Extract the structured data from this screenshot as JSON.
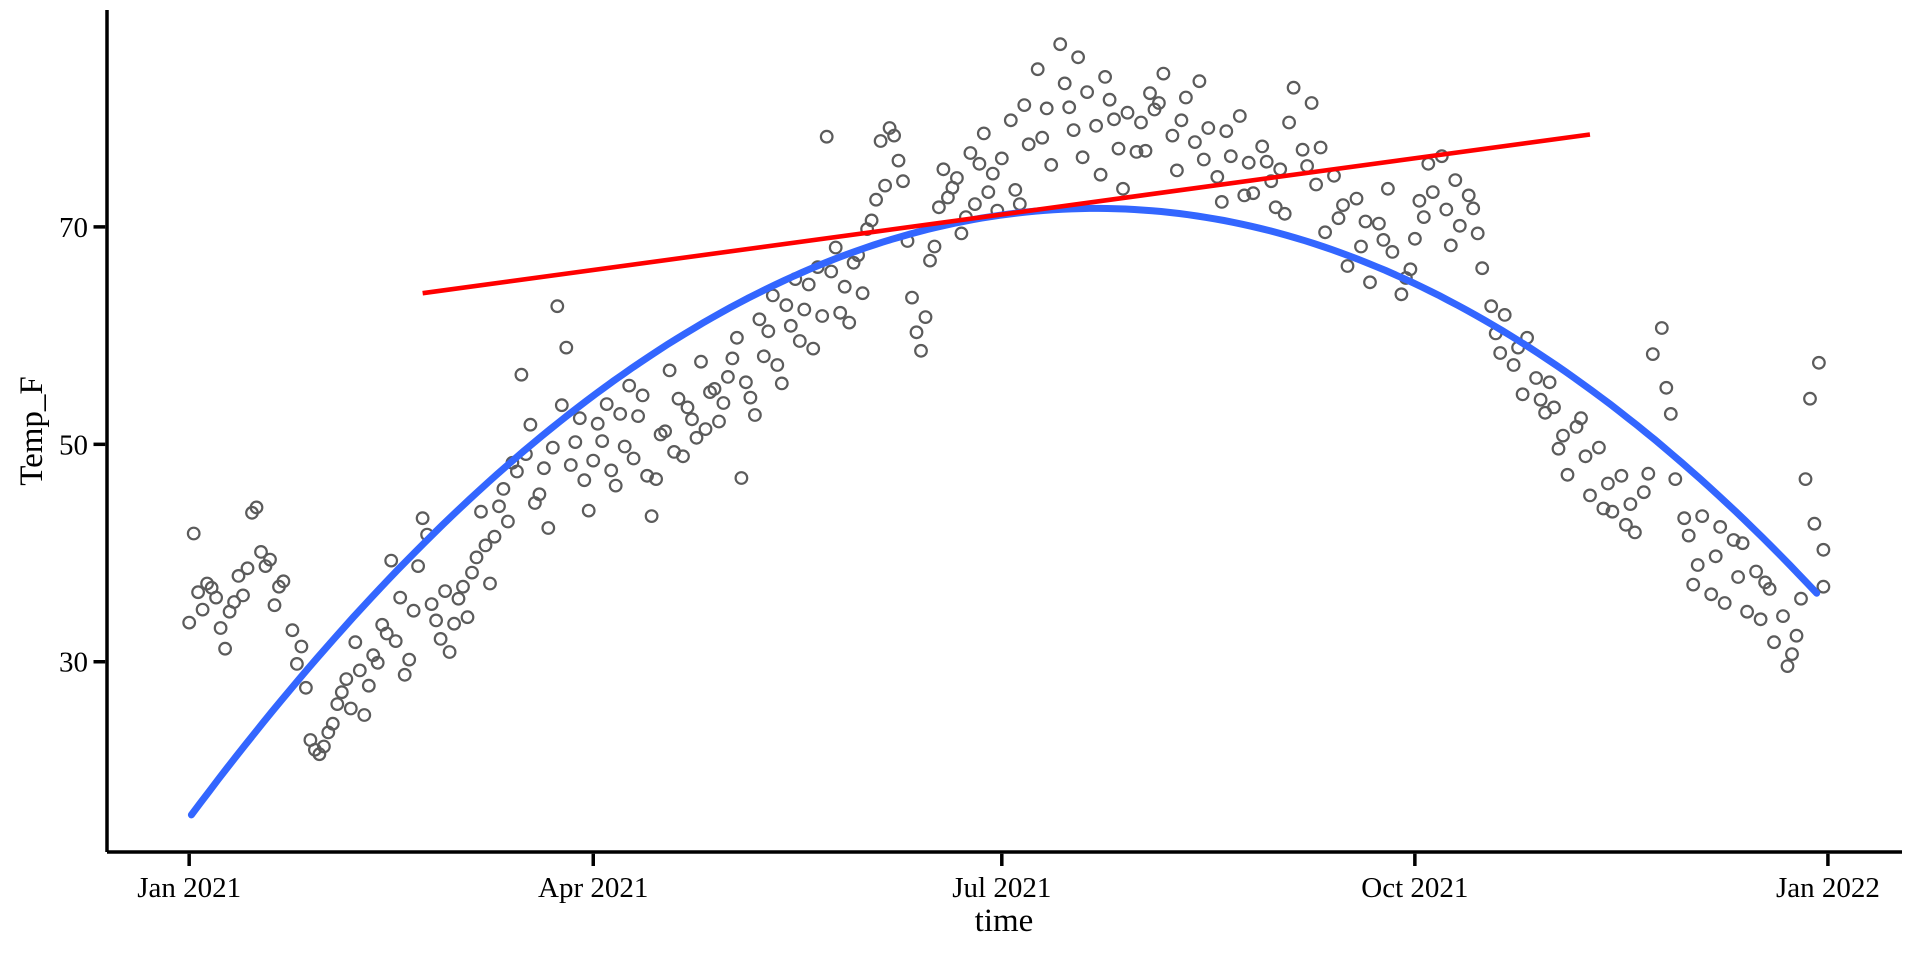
{
  "chart_data": {
    "type": "scatter",
    "title": "",
    "xlabel": "time",
    "ylabel": "Temp_F",
    "grid": false,
    "legend": "none",
    "x_axis": {
      "unit": "days since 2021-01-01",
      "domain_days": [
        -18.3,
        381.5
      ],
      "ticks": [
        {
          "label": "Jan 2021",
          "day": 0
        },
        {
          "label": "Apr 2021",
          "day": 90
        },
        {
          "label": "Jul 2021",
          "day": 181
        },
        {
          "label": "Oct 2021",
          "day": 273
        },
        {
          "label": "Jan 2022",
          "day": 365
        }
      ]
    },
    "y_axis": {
      "domain": [
        12.5,
        89.95
      ],
      "ticks": [
        {
          "label": "70",
          "value": 70
        },
        {
          "label": "50",
          "value": 50
        },
        {
          "label": "30",
          "value": 30
        }
      ]
    },
    "points_style": {
      "color": "#5b5b5b",
      "radius": 5.8,
      "stroke_width": 2.2
    },
    "fits": [
      {
        "name": "quadratic-fit",
        "color": "#3366FF",
        "stroke_width": 7,
        "peak_day": 202,
        "peak_value": 71.7,
        "coeff": 0.001374,
        "day_range": [
          0.5,
          362.5
        ]
      },
      {
        "name": "linear-fit",
        "color": "#FF0000",
        "stroke_width": 4.6,
        "from_day": 52,
        "from_value": 63.9,
        "to_day": 312,
        "to_value": 78.5
      }
    ],
    "points": [
      [
        0,
        33.6
      ],
      [
        1,
        41.8
      ],
      [
        2,
        36.4
      ],
      [
        3,
        34.8
      ],
      [
        4,
        37.2
      ],
      [
        5,
        36.8
      ],
      [
        6,
        35.9
      ],
      [
        7,
        33.1
      ],
      [
        8,
        31.2
      ],
      [
        9,
        34.6
      ],
      [
        10,
        35.5
      ],
      [
        11,
        37.9
      ],
      [
        12,
        36.1
      ],
      [
        13,
        38.6
      ],
      [
        14,
        43.7
      ],
      [
        15,
        44.2
      ],
      [
        16,
        40.1
      ],
      [
        17,
        38.8
      ],
      [
        18,
        39.4
      ],
      [
        19,
        35.2
      ],
      [
        20,
        36.9
      ],
      [
        21,
        37.4
      ],
      [
        23,
        32.9
      ],
      [
        24,
        29.8
      ],
      [
        25,
        31.4
      ],
      [
        26,
        27.6
      ],
      [
        27,
        22.8
      ],
      [
        28,
        21.9
      ],
      [
        29,
        21.5
      ],
      [
        30,
        22.2
      ],
      [
        31,
        23.5
      ],
      [
        32,
        24.3
      ],
      [
        33,
        26.1
      ],
      [
        34,
        27.2
      ],
      [
        35,
        28.4
      ],
      [
        36,
        25.7
      ],
      [
        37,
        31.8
      ],
      [
        38,
        29.2
      ],
      [
        39,
        25.1
      ],
      [
        40,
        27.8
      ],
      [
        41,
        30.6
      ],
      [
        42,
        29.9
      ],
      [
        43,
        33.4
      ],
      [
        44,
        32.6
      ],
      [
        45,
        39.3
      ],
      [
        46,
        31.9
      ],
      [
        47,
        35.9
      ],
      [
        48,
        28.8
      ],
      [
        49,
        30.2
      ],
      [
        50,
        34.7
      ],
      [
        51,
        38.8
      ],
      [
        52,
        43.2
      ],
      [
        53,
        41.7
      ],
      [
        54,
        35.3
      ],
      [
        55,
        33.8
      ],
      [
        56,
        32.1
      ],
      [
        57,
        36.5
      ],
      [
        58,
        30.9
      ],
      [
        59,
        33.5
      ],
      [
        60,
        35.8
      ],
      [
        61,
        36.9
      ],
      [
        62,
        34.1
      ],
      [
        63,
        38.2
      ],
      [
        64,
        39.6
      ],
      [
        65,
        43.8
      ],
      [
        66,
        40.7
      ],
      [
        67,
        37.2
      ],
      [
        68,
        41.5
      ],
      [
        69,
        44.3
      ],
      [
        70,
        45.9
      ],
      [
        71,
        42.9
      ],
      [
        72,
        48.3
      ],
      [
        73,
        47.5
      ],
      [
        74,
        56.4
      ],
      [
        75,
        49.1
      ],
      [
        76,
        51.8
      ],
      [
        77,
        44.6
      ],
      [
        78,
        45.4
      ],
      [
        79,
        47.8
      ],
      [
        80,
        42.3
      ],
      [
        81,
        49.7
      ],
      [
        82,
        62.7
      ],
      [
        83,
        53.6
      ],
      [
        84,
        58.9
      ],
      [
        85,
        48.1
      ],
      [
        86,
        50.2
      ],
      [
        87,
        52.4
      ],
      [
        88,
        46.7
      ],
      [
        89,
        43.9
      ],
      [
        90,
        48.5
      ],
      [
        91,
        51.9
      ],
      [
        92,
        50.3
      ],
      [
        93,
        53.7
      ],
      [
        94,
        47.6
      ],
      [
        95,
        46.2
      ],
      [
        96,
        52.8
      ],
      [
        97,
        49.8
      ],
      [
        98,
        55.4
      ],
      [
        99,
        48.7
      ],
      [
        100,
        52.6
      ],
      [
        101,
        54.5
      ],
      [
        102,
        47.1
      ],
      [
        103,
        43.4
      ],
      [
        104,
        46.8
      ],
      [
        105,
        50.9
      ],
      [
        106,
        51.2
      ],
      [
        107,
        56.8
      ],
      [
        108,
        49.3
      ],
      [
        109,
        54.2
      ],
      [
        110,
        48.9
      ],
      [
        111,
        53.4
      ],
      [
        112,
        52.3
      ],
      [
        113,
        50.6
      ],
      [
        114,
        57.6
      ],
      [
        115,
        51.4
      ],
      [
        116,
        54.8
      ],
      [
        117,
        55.1
      ],
      [
        118,
        52.1
      ],
      [
        119,
        53.8
      ],
      [
        120,
        56.2
      ],
      [
        121,
        57.9
      ],
      [
        122,
        59.8
      ],
      [
        123,
        46.9
      ],
      [
        124,
        55.7
      ],
      [
        125,
        54.3
      ],
      [
        126,
        52.7
      ],
      [
        127,
        61.5
      ],
      [
        128,
        58.1
      ],
      [
        129,
        60.4
      ],
      [
        130,
        63.7
      ],
      [
        131,
        57.3
      ],
      [
        132,
        55.6
      ],
      [
        133,
        62.8
      ],
      [
        134,
        60.9
      ],
      [
        135,
        65.2
      ],
      [
        136,
        59.5
      ],
      [
        137,
        62.4
      ],
      [
        138,
        64.7
      ],
      [
        139,
        58.8
      ],
      [
        140,
        66.3
      ],
      [
        141,
        61.8
      ],
      [
        142,
        78.3
      ],
      [
        143,
        65.9
      ],
      [
        144,
        68.1
      ],
      [
        145,
        62.1
      ],
      [
        146,
        64.5
      ],
      [
        147,
        61.2
      ],
      [
        148,
        66.7
      ],
      [
        149,
        67.4
      ],
      [
        150,
        63.9
      ],
      [
        151,
        69.8
      ],
      [
        152,
        70.6
      ],
      [
        153,
        72.5
      ],
      [
        154,
        77.9
      ],
      [
        155,
        73.8
      ],
      [
        156,
        79.1
      ],
      [
        157,
        78.4
      ],
      [
        158,
        76.1
      ],
      [
        159,
        74.2
      ],
      [
        160,
        68.7
      ],
      [
        161,
        63.5
      ],
      [
        162,
        60.3
      ],
      [
        163,
        58.6
      ],
      [
        164,
        61.7
      ],
      [
        165,
        66.9
      ],
      [
        166,
        68.2
      ],
      [
        167,
        71.8
      ],
      [
        168,
        75.3
      ],
      [
        169,
        72.7
      ],
      [
        170,
        73.6
      ],
      [
        171,
        74.5
      ],
      [
        172,
        69.4
      ],
      [
        173,
        70.9
      ],
      [
        174,
        76.8
      ],
      [
        175,
        72.1
      ],
      [
        176,
        75.8
      ],
      [
        177,
        78.6
      ],
      [
        178,
        73.2
      ],
      [
        179,
        74.9
      ],
      [
        180,
        71.5
      ],
      [
        181,
        76.3
      ],
      [
        183,
        79.8
      ],
      [
        184,
        73.4
      ],
      [
        185,
        72.1
      ],
      [
        186,
        81.2
      ],
      [
        187,
        77.6
      ],
      [
        189,
        84.5
      ],
      [
        190,
        78.2
      ],
      [
        191,
        80.9
      ],
      [
        192,
        75.7
      ],
      [
        194,
        86.8
      ],
      [
        195,
        83.2
      ],
      [
        196,
        81.0
      ],
      [
        197,
        78.9
      ],
      [
        198,
        85.6
      ],
      [
        199,
        76.4
      ],
      [
        200,
        82.4
      ],
      [
        202,
        79.3
      ],
      [
        203,
        74.8
      ],
      [
        204,
        83.8
      ],
      [
        205,
        81.7
      ],
      [
        206,
        79.9
      ],
      [
        207,
        77.2
      ],
      [
        208,
        73.5
      ],
      [
        209,
        80.5
      ],
      [
        211,
        76.9
      ],
      [
        212,
        79.6
      ],
      [
        213,
        77.0
      ],
      [
        214,
        82.3
      ],
      [
        215,
        80.8
      ],
      [
        216,
        81.4
      ],
      [
        217,
        84.1
      ],
      [
        219,
        78.4
      ],
      [
        220,
        75.2
      ],
      [
        221,
        79.8
      ],
      [
        222,
        81.9
      ],
      [
        224,
        77.8
      ],
      [
        225,
        83.4
      ],
      [
        226,
        76.2
      ],
      [
        227,
        79.1
      ],
      [
        229,
        74.6
      ],
      [
        230,
        72.3
      ],
      [
        231,
        78.8
      ],
      [
        232,
        76.5
      ],
      [
        234,
        80.2
      ],
      [
        235,
        72.9
      ],
      [
        236,
        75.9
      ],
      [
        237,
        73.1
      ],
      [
        239,
        77.4
      ],
      [
        240,
        76.0
      ],
      [
        241,
        74.2
      ],
      [
        242,
        71.8
      ],
      [
        243,
        75.3
      ],
      [
        244,
        71.2
      ],
      [
        245,
        79.6
      ],
      [
        246,
        82.8
      ],
      [
        248,
        77.1
      ],
      [
        249,
        75.6
      ],
      [
        250,
        81.4
      ],
      [
        251,
        73.9
      ],
      [
        252,
        77.3
      ],
      [
        253,
        69.5
      ],
      [
        255,
        74.7
      ],
      [
        256,
        70.8
      ],
      [
        257,
        72.0
      ],
      [
        258,
        66.4
      ],
      [
        260,
        72.6
      ],
      [
        261,
        68.2
      ],
      [
        262,
        70.5
      ],
      [
        263,
        64.9
      ],
      [
        265,
        70.3
      ],
      [
        266,
        68.8
      ],
      [
        267,
        73.5
      ],
      [
        268,
        67.7
      ],
      [
        270,
        63.8
      ],
      [
        271,
        65.3
      ],
      [
        272,
        66.1
      ],
      [
        273,
        68.9
      ],
      [
        274,
        72.4
      ],
      [
        275,
        70.9
      ],
      [
        276,
        75.8
      ],
      [
        277,
        73.2
      ],
      [
        279,
        76.5
      ],
      [
        280,
        71.6
      ],
      [
        281,
        68.3
      ],
      [
        282,
        74.3
      ],
      [
        283,
        70.1
      ],
      [
        285,
        72.9
      ],
      [
        286,
        71.7
      ],
      [
        287,
        69.4
      ],
      [
        288,
        66.2
      ],
      [
        290,
        62.7
      ],
      [
        291,
        60.2
      ],
      [
        292,
        58.4
      ],
      [
        293,
        61.9
      ],
      [
        295,
        57.3
      ],
      [
        296,
        58.9
      ],
      [
        297,
        54.6
      ],
      [
        298,
        59.8
      ],
      [
        300,
        56.1
      ],
      [
        301,
        54.1
      ],
      [
        302,
        52.9
      ],
      [
        303,
        55.7
      ],
      [
        304,
        53.4
      ],
      [
        305,
        49.6
      ],
      [
        306,
        50.8
      ],
      [
        307,
        47.2
      ],
      [
        309,
        51.6
      ],
      [
        310,
        52.4
      ],
      [
        311,
        48.9
      ],
      [
        312,
        45.3
      ],
      [
        314,
        49.7
      ],
      [
        315,
        44.1
      ],
      [
        316,
        46.4
      ],
      [
        317,
        43.8
      ],
      [
        319,
        47.1
      ],
      [
        320,
        42.6
      ],
      [
        321,
        44.5
      ],
      [
        322,
        41.9
      ],
      [
        324,
        45.6
      ],
      [
        325,
        47.3
      ],
      [
        326,
        58.3
      ],
      [
        328,
        60.7
      ],
      [
        329,
        55.2
      ],
      [
        330,
        52.8
      ],
      [
        331,
        46.8
      ],
      [
        333,
        43.2
      ],
      [
        334,
        41.6
      ],
      [
        335,
        37.1
      ],
      [
        336,
        38.9
      ],
      [
        337,
        43.4
      ],
      [
        339,
        36.2
      ],
      [
        340,
        39.7
      ],
      [
        341,
        42.4
      ],
      [
        342,
        35.4
      ],
      [
        344,
        41.2
      ],
      [
        345,
        37.8
      ],
      [
        346,
        40.9
      ],
      [
        347,
        34.6
      ],
      [
        349,
        38.3
      ],
      [
        350,
        33.9
      ],
      [
        351,
        37.3
      ],
      [
        352,
        36.7
      ],
      [
        353,
        31.8
      ],
      [
        355,
        34.2
      ],
      [
        356,
        29.6
      ],
      [
        357,
        30.7
      ],
      [
        358,
        32.4
      ],
      [
        359,
        35.8
      ],
      [
        360,
        46.8
      ],
      [
        361,
        54.2
      ],
      [
        362,
        42.7
      ],
      [
        363,
        57.5
      ],
      [
        364,
        40.3
      ],
      [
        364,
        36.9
      ]
    ]
  },
  "colors": {
    "axis": "#000000",
    "background": "#FFFFFF"
  }
}
